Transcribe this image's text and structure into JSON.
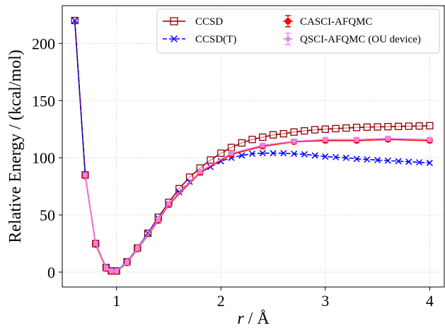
{
  "chart_data": {
    "type": "line",
    "xlabel_var": "r",
    "xlabel_unit": " / Å",
    "ylabel": "Relative Energy / (kcal/mol)",
    "xlim": [
      0.48,
      4.14
    ],
    "ylim": [
      -13,
      233
    ],
    "xticks": [
      1,
      2,
      3,
      4
    ],
    "yticks": [
      0,
      50,
      100,
      150,
      200
    ],
    "grid": true,
    "legend_position": "top-right",
    "series": [
      {
        "name": "CCSD",
        "color": "#8b0000",
        "marker": "square-open",
        "linestyle": "solid",
        "x": [
          0.6,
          0.7,
          0.8,
          0.9,
          0.95,
          1.0,
          1.1,
          1.2,
          1.3,
          1.4,
          1.5,
          1.6,
          1.7,
          1.8,
          1.9,
          2.0,
          2.1,
          2.2,
          2.3,
          2.4,
          2.5,
          2.6,
          2.7,
          2.8,
          2.9,
          3.0,
          3.1,
          3.2,
          3.3,
          3.4,
          3.5,
          3.6,
          3.7,
          3.8,
          3.9,
          4.0
        ],
        "values": [
          220,
          85,
          25,
          4,
          1,
          1,
          9,
          21,
          34,
          48,
          61,
          73,
          83,
          91,
          98,
          104,
          109,
          113,
          116,
          118,
          120,
          121,
          122.5,
          123.5,
          124.5,
          125,
          125.5,
          126,
          126.5,
          126.8,
          127,
          127.2,
          127.4,
          127.6,
          127.8,
          128
        ]
      },
      {
        "name": "CCSD(T)",
        "color": "#0000ff",
        "marker": "x",
        "linestyle": "dashed",
        "x": [
          0.6,
          0.7,
          0.8,
          0.9,
          0.95,
          1.0,
          1.1,
          1.2,
          1.3,
          1.4,
          1.5,
          1.6,
          1.7,
          1.8,
          1.9,
          2.0,
          2.1,
          2.2,
          2.3,
          2.4,
          2.5,
          2.6,
          2.7,
          2.8,
          2.9,
          3.0,
          3.1,
          3.2,
          3.3,
          3.4,
          3.5,
          3.6,
          3.7,
          3.8,
          3.9,
          4.0
        ],
        "values": [
          220,
          85,
          25,
          4,
          1,
          1,
          9,
          21,
          34,
          47,
          59,
          70,
          79,
          87,
          92,
          97,
          100,
          102,
          103.5,
          104,
          104,
          104,
          103.5,
          103,
          102,
          101,
          100.5,
          100,
          99,
          98.5,
          98,
          97.5,
          97,
          96.5,
          96,
          95.5
        ]
      },
      {
        "name": "CASCI-AFQMC",
        "color": "#ff0000",
        "marker": "circle-errorbar",
        "linestyle": "solid",
        "x": [
          0.7,
          0.8,
          0.9,
          0.95,
          1.0,
          1.1,
          1.2,
          1.4,
          1.5,
          1.8,
          2.1,
          2.4,
          2.7,
          3.0,
          3.3,
          3.6,
          4.0
        ],
        "values": [
          84,
          24,
          3,
          0.5,
          0.5,
          8,
          20,
          45,
          59,
          87,
          103,
          110,
          114,
          115,
          115,
          116,
          115
        ]
      },
      {
        "name": "QSCI-AFQMC (OU device)",
        "color": "#ee82ee",
        "marker": "circle-errorbar",
        "linestyle": "solid",
        "x": [
          0.7,
          0.8,
          0.9,
          0.95,
          1.0,
          1.1,
          1.2,
          1.4,
          1.5,
          1.8,
          2.1,
          2.4,
          2.7,
          3.0,
          3.3,
          3.6,
          4.0
        ],
        "values": [
          85,
          25,
          3.5,
          1,
          1,
          8.5,
          20.5,
          46,
          60,
          88,
          104,
          111,
          114.5,
          116,
          116,
          117,
          116
        ]
      }
    ]
  }
}
